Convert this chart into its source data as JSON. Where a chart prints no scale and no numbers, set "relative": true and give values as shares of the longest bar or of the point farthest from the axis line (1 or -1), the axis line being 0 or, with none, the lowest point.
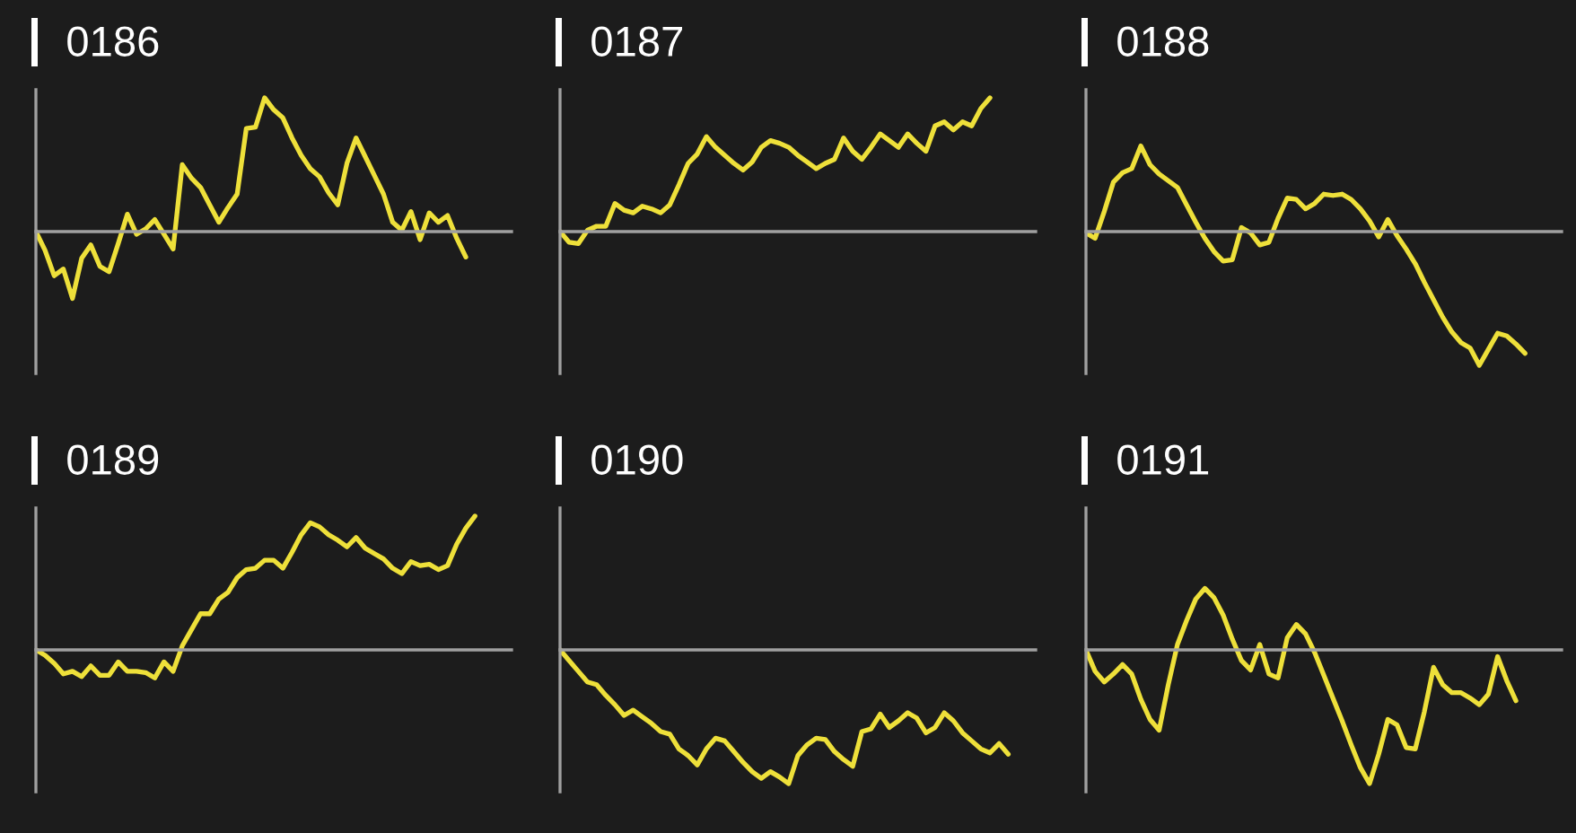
{
  "chart_data": [
    {
      "type": "line",
      "title": "0186",
      "relative": true,
      "color": "#eee03a",
      "categories": [
        null,
        null,
        null,
        null,
        null,
        null,
        null,
        null,
        null,
        null,
        null,
        null,
        null,
        null,
        null,
        null,
        null,
        null,
        null,
        null,
        null,
        null,
        null,
        null,
        null,
        null,
        null,
        null,
        null,
        null,
        null,
        null,
        null,
        null,
        null,
        null,
        null,
        null,
        null,
        null,
        null,
        null,
        null,
        null,
        null,
        null,
        null,
        null,
        null,
        null,
        null,
        null,
        null
      ],
      "values": [
        0,
        -0.14,
        -0.33,
        -0.28,
        -0.5,
        -0.2,
        -0.1,
        -0.26,
        -0.3,
        -0.09,
        0.13,
        -0.02,
        0.02,
        0.09,
        -0.02,
        -0.13,
        0.5,
        0.4,
        0.33,
        0.2,
        0.07,
        0.18,
        0.28,
        0.77,
        0.78,
        1.0,
        0.91,
        0.85,
        0.7,
        0.57,
        0.47,
        0.41,
        0.29,
        0.2,
        0.51,
        0.7,
        0.56,
        0.42,
        0.28,
        0.07,
        0.01,
        0.15,
        -0.06,
        0.14,
        0.07,
        0.12,
        -0.05,
        -0.19,
        null,
        null,
        null,
        null,
        null
      ]
    },
    {
      "type": "line",
      "title": "0187",
      "relative": true,
      "color": "#eee03a",
      "categories": [
        null,
        null,
        null,
        null,
        null,
        null,
        null,
        null,
        null,
        null,
        null,
        null,
        null,
        null,
        null,
        null,
        null,
        null,
        null,
        null,
        null,
        null,
        null,
        null,
        null,
        null,
        null,
        null,
        null,
        null,
        null,
        null,
        null,
        null,
        null,
        null,
        null,
        null,
        null,
        null,
        null,
        null,
        null,
        null,
        null,
        null,
        null,
        null,
        null,
        null,
        null,
        null,
        null
      ],
      "values": [
        0,
        -0.08,
        -0.09,
        0.01,
        0.04,
        0.04,
        0.21,
        0.16,
        0.14,
        0.19,
        0.17,
        0.14,
        0.2,
        0.35,
        0.51,
        0.58,
        0.71,
        0.63,
        0.57,
        0.51,
        0.46,
        0.52,
        0.63,
        0.68,
        0.66,
        0.63,
        0.57,
        0.52,
        0.47,
        0.51,
        0.54,
        0.7,
        0.6,
        0.54,
        0.63,
        0.73,
        0.68,
        0.63,
        0.73,
        0.66,
        0.6,
        0.79,
        0.82,
        0.76,
        0.82,
        0.79,
        0.92,
        1.0,
        null,
        null,
        null,
        null,
        null
      ]
    },
    {
      "type": "line",
      "title": "0188",
      "relative": true,
      "color": "#eee03a",
      "categories": [
        null,
        null,
        null,
        null,
        null,
        null,
        null,
        null,
        null,
        null,
        null,
        null,
        null,
        null,
        null,
        null,
        null,
        null,
        null,
        null,
        null,
        null,
        null,
        null,
        null,
        null,
        null,
        null,
        null,
        null,
        null,
        null,
        null,
        null,
        null,
        null,
        null,
        null,
        null,
        null,
        null,
        null,
        null,
        null,
        null,
        null,
        null,
        null,
        null,
        null,
        null,
        null,
        null
      ],
      "values": [
        -0.01,
        -0.05,
        0.15,
        0.37,
        0.44,
        0.47,
        0.64,
        0.5,
        0.43,
        0.38,
        0.33,
        0.2,
        0.07,
        -0.05,
        -0.15,
        -0.22,
        -0.21,
        0.03,
        -0.01,
        -0.1,
        -0.08,
        0.1,
        0.25,
        0.24,
        0.17,
        0.21,
        0.28,
        0.27,
        0.28,
        0.24,
        0.17,
        0.08,
        -0.04,
        0.09,
        -0.03,
        -0.13,
        -0.24,
        -0.38,
        -0.51,
        -0.64,
        -0.75,
        -0.83,
        -0.87,
        -1.0,
        -0.88,
        -0.76,
        -0.78,
        -0.84,
        -0.91,
        null,
        null,
        null,
        null
      ]
    },
    {
      "type": "line",
      "title": "0189",
      "relative": true,
      "color": "#eee03a",
      "categories": [
        null,
        null,
        null,
        null,
        null,
        null,
        null,
        null,
        null,
        null,
        null,
        null,
        null,
        null,
        null,
        null,
        null,
        null,
        null,
        null,
        null,
        null,
        null,
        null,
        null,
        null,
        null,
        null,
        null,
        null,
        null,
        null,
        null,
        null,
        null,
        null,
        null,
        null,
        null,
        null,
        null,
        null,
        null,
        null,
        null,
        null,
        null,
        null,
        null,
        null,
        null,
        null,
        null
      ],
      "values": [
        0,
        -0.04,
        -0.1,
        -0.18,
        -0.16,
        -0.2,
        -0.12,
        -0.19,
        -0.19,
        -0.09,
        -0.16,
        -0.16,
        -0.17,
        -0.21,
        -0.09,
        -0.16,
        0.03,
        0.15,
        0.27,
        0.27,
        0.38,
        0.43,
        0.54,
        0.6,
        0.61,
        0.67,
        0.67,
        0.61,
        0.73,
        0.86,
        0.95,
        0.92,
        0.86,
        0.82,
        0.77,
        0.84,
        0.76,
        0.72,
        0.68,
        0.61,
        0.57,
        0.66,
        0.63,
        0.64,
        0.6,
        0.63,
        0.79,
        0.91,
        1.0,
        null,
        null,
        null,
        null
      ]
    },
    {
      "type": "line",
      "title": "0190",
      "relative": true,
      "color": "#eee03a",
      "categories": [
        null,
        null,
        null,
        null,
        null,
        null,
        null,
        null,
        null,
        null,
        null,
        null,
        null,
        null,
        null,
        null,
        null,
        null,
        null,
        null,
        null,
        null,
        null,
        null,
        null,
        null,
        null,
        null,
        null,
        null,
        null,
        null,
        null,
        null,
        null,
        null,
        null,
        null,
        null,
        null,
        null,
        null,
        null,
        null,
        null,
        null,
        null,
        null,
        null,
        null,
        null,
        null,
        null
      ],
      "values": [
        0,
        -0.08,
        -0.16,
        -0.24,
        -0.26,
        -0.34,
        -0.41,
        -0.49,
        -0.45,
        -0.5,
        -0.55,
        -0.61,
        -0.63,
        -0.74,
        -0.79,
        -0.86,
        -0.74,
        -0.66,
        -0.68,
        -0.76,
        -0.84,
        -0.91,
        -0.96,
        -0.91,
        -0.95,
        -1.0,
        -0.79,
        -0.71,
        -0.66,
        -0.67,
        -0.76,
        -0.82,
        -0.87,
        -0.61,
        -0.59,
        -0.48,
        -0.58,
        -0.53,
        -0.47,
        -0.51,
        -0.62,
        -0.58,
        -0.47,
        -0.53,
        -0.62,
        -0.68,
        -0.74,
        -0.77,
        -0.7,
        -0.78,
        null,
        null,
        null
      ]
    },
    {
      "type": "line",
      "title": "0191",
      "relative": true,
      "color": "#eee03a",
      "categories": [
        null,
        null,
        null,
        null,
        null,
        null,
        null,
        null,
        null,
        null,
        null,
        null,
        null,
        null,
        null,
        null,
        null,
        null,
        null,
        null,
        null,
        null,
        null,
        null,
        null,
        null,
        null,
        null,
        null,
        null,
        null,
        null,
        null,
        null,
        null,
        null,
        null,
        null,
        null,
        null,
        null,
        null,
        null,
        null,
        null,
        null,
        null,
        null,
        null,
        null,
        null,
        null,
        null
      ],
      "values": [
        0,
        -0.16,
        -0.24,
        -0.18,
        -0.11,
        -0.18,
        -0.37,
        -0.52,
        -0.6,
        -0.26,
        0.04,
        0.22,
        0.38,
        0.46,
        0.39,
        0.26,
        0.08,
        -0.08,
        -0.15,
        0.04,
        -0.18,
        -0.21,
        0.09,
        0.19,
        0.12,
        -0.02,
        -0.19,
        -0.36,
        -0.53,
        -0.71,
        -0.88,
        -1.0,
        -0.78,
        -0.52,
        -0.56,
        -0.73,
        -0.74,
        -0.46,
        -0.13,
        -0.26,
        -0.32,
        -0.32,
        -0.36,
        -0.41,
        -0.33,
        -0.05,
        -0.23,
        -0.38,
        null,
        null,
        null,
        null,
        null
      ]
    }
  ]
}
